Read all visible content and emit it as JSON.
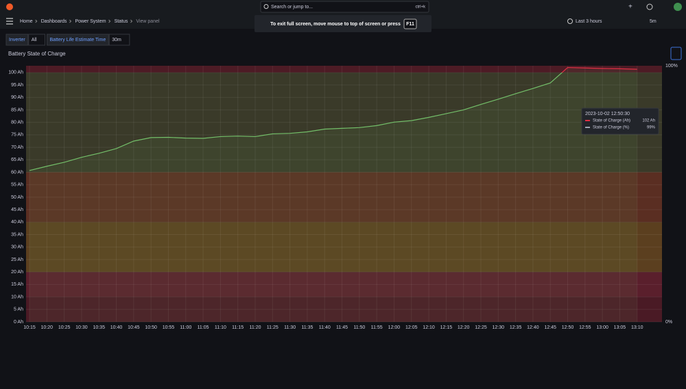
{
  "topbar": {
    "search": "Search or jump to...",
    "shortcut": "ctrl+k"
  },
  "breadcrumbs": [
    "Home",
    "Dashboards",
    "Power System",
    "Status",
    "View panel"
  ],
  "time_range": "Last 3 hours",
  "refresh": "5m",
  "toast": {
    "text": "To exit full screen, move mouse to top of screen or press",
    "key": "F11"
  },
  "variables": [
    {
      "label": "Inverter",
      "value": "All"
    },
    {
      "label": "Battery Life Estimate Time",
      "value": "30m"
    }
  ],
  "panel": {
    "title": "Battery State of Charge",
    "tooltip": {
      "time": "2023-10-02 12:50:30",
      "rows": [
        {
          "name": "State of Charge (Ah)",
          "color": "#e02f44",
          "value": "102 Ah"
        },
        {
          "name": "State of Charge (%)",
          "color": "#9fa7b3",
          "value": "99%"
        }
      ]
    }
  },
  "chart_data": {
    "type": "line",
    "categories": [
      "10:15",
      "10:20",
      "10:25",
      "10:30",
      "10:35",
      "10:40",
      "10:45",
      "10:50",
      "10:55",
      "11:00",
      "11:05",
      "11:10",
      "11:15",
      "11:20",
      "11:25",
      "11:30",
      "11:35",
      "11:40",
      "11:45",
      "11:50",
      "11:55",
      "12:00",
      "12:05",
      "12:10",
      "12:15",
      "12:20",
      "12:25",
      "12:30",
      "12:35",
      "12:40",
      "12:45",
      "12:50",
      "12:55",
      "13:00",
      "13:05",
      "13:10"
    ],
    "series": [
      {
        "color": "#73bf69",
        "values": [
          60.7,
          62.4,
          64,
          66,
          67.6,
          69.5,
          72.5,
          73.9,
          74,
          73.7,
          73.6,
          74.3,
          74.5,
          74.3,
          75.4,
          75.6,
          76.2,
          77.3,
          77.6,
          77.9,
          78.7,
          80.1,
          80.7,
          82,
          83.5,
          85,
          87.2,
          89.3,
          91.5,
          93.6,
          95.8,
          102,
          101.8,
          101.6,
          101.5,
          101.3
        ]
      }
    ],
    "over_color": "#e02f44",
    "thresholds": [
      {
        "value": 0,
        "color": "#4a1a25"
      },
      {
        "value": 10,
        "color": "#5a1f2c"
      },
      {
        "value": 20,
        "color": "#5b3f1f"
      },
      {
        "value": 40,
        "color": "#5a2e22"
      },
      {
        "value": 60,
        "color": "#3a3a29"
      },
      {
        "value": 100,
        "color": "#4d1b25"
      }
    ],
    "ylim": [
      0,
      102.7
    ],
    "yticks": [
      {
        "value": 0,
        "label": "0 Ah"
      },
      {
        "value": 5,
        "label": "5 Ah"
      },
      {
        "value": 10,
        "label": "10 Ah"
      },
      {
        "value": 15,
        "label": "15 Ah"
      },
      {
        "value": 20,
        "label": "20 Ah"
      },
      {
        "value": 25,
        "label": "25 Ah"
      },
      {
        "value": 30,
        "label": "30 Ah"
      },
      {
        "value": 35,
        "label": "35 Ah"
      },
      {
        "value": 40,
        "label": "40 Ah"
      },
      {
        "value": 45,
        "label": "45 Ah"
      },
      {
        "value": 50,
        "label": "50 Ah"
      },
      {
        "value": 55,
        "label": "55 Ah"
      },
      {
        "value": 60,
        "label": "60 Ah"
      },
      {
        "value": 65,
        "label": "65 Ah"
      },
      {
        "value": 70,
        "label": "70 Ah"
      },
      {
        "value": 75,
        "label": "75 Ah"
      },
      {
        "value": 80,
        "label": "80 Ah"
      },
      {
        "value": 85,
        "label": "85 Ah"
      },
      {
        "value": 90,
        "label": "90 Ah"
      },
      {
        "value": 95,
        "label": "95 Ah"
      },
      {
        "value": 100,
        "label": "100 Ah"
      }
    ],
    "y2lim": [
      0,
      100
    ],
    "y2ticks": [
      {
        "value": 0,
        "label": "0%"
      },
      {
        "value": 100,
        "label": "100%"
      }
    ],
    "grid": true
  }
}
